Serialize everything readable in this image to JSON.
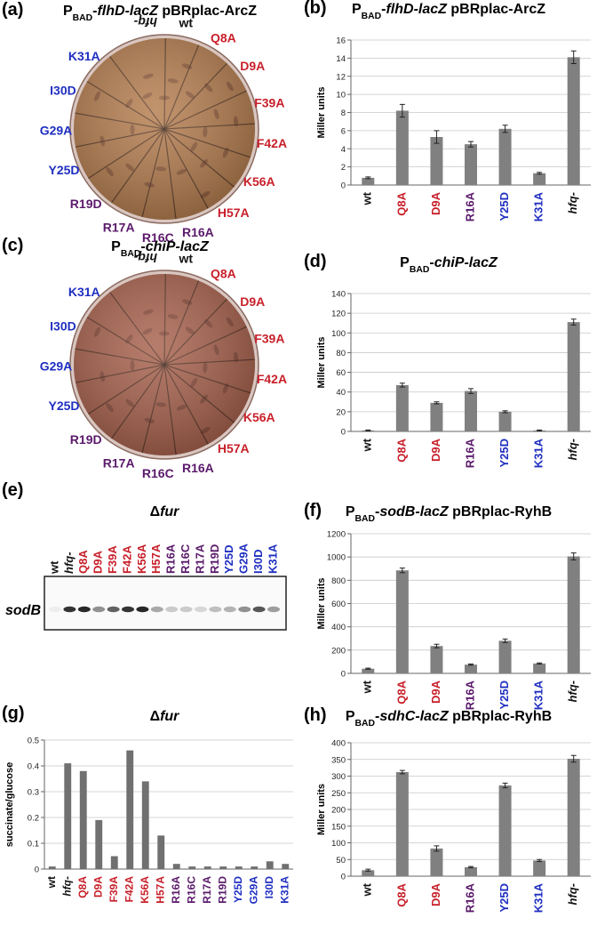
{
  "plates": [
    {
      "panel": "(a)",
      "title": [
        {
          "text": "P"
        },
        {
          "text": "BAD",
          "sub": true
        },
        {
          "text": "-"
        },
        {
          "text": "flhD-lacZ",
          "italic": true
        },
        {
          "text": " pBRplac-ArcZ"
        }
      ],
      "fill": "#b57d4e",
      "strains": [
        {
          "label": "hfq-",
          "color": "#111111"
        },
        {
          "label": "wt",
          "color": "#111111"
        },
        {
          "label": "Q8A",
          "color": "#c8202a"
        },
        {
          "label": "D9A",
          "color": "#c8202a"
        },
        {
          "label": "F39A",
          "color": "#c8202a"
        },
        {
          "label": "F42A",
          "color": "#c8202a"
        },
        {
          "label": "K56A",
          "color": "#c8202a"
        },
        {
          "label": "H57A",
          "color": "#c8202a"
        },
        {
          "label": "R16A",
          "color": "#5b1a6b"
        },
        {
          "label": "R16C",
          "color": "#5b1a6b"
        },
        {
          "label": "R17A",
          "color": "#5b1a6b"
        },
        {
          "label": "R19D",
          "color": "#5b1a6b"
        },
        {
          "label": "Y25D",
          "color": "#1f2fc0"
        },
        {
          "label": "G29A",
          "color": "#1f2fc0"
        },
        {
          "label": "I30D",
          "color": "#1f2fc0"
        },
        {
          "label": "K31A",
          "color": "#1f2fc0"
        }
      ]
    },
    {
      "panel": "(c)",
      "title": [
        {
          "text": "P"
        },
        {
          "text": "BAD",
          "sub": true
        },
        {
          "text": "-"
        },
        {
          "text": "chiP-lacZ",
          "italic": true
        }
      ],
      "fill": "#a8614c",
      "strains": [
        {
          "label": "hfq-",
          "color": "#111111"
        },
        {
          "label": "wt",
          "color": "#111111"
        },
        {
          "label": "Q8A",
          "color": "#c8202a"
        },
        {
          "label": "D9A",
          "color": "#c8202a"
        },
        {
          "label": "F39A",
          "color": "#c8202a"
        },
        {
          "label": "F42A",
          "color": "#c8202a"
        },
        {
          "label": "K56A",
          "color": "#c8202a"
        },
        {
          "label": "H57A",
          "color": "#c8202a"
        },
        {
          "label": "R16A",
          "color": "#5b1a6b"
        },
        {
          "label": "R16C",
          "color": "#5b1a6b"
        },
        {
          "label": "R17A",
          "color": "#5b1a6b"
        },
        {
          "label": "R19D",
          "color": "#5b1a6b"
        },
        {
          "label": "Y25D",
          "color": "#1f2fc0"
        },
        {
          "label": "G29A",
          "color": "#1f2fc0"
        },
        {
          "label": "I30D",
          "color": "#1f2fc0"
        },
        {
          "label": "K31A",
          "color": "#1f2fc0"
        }
      ]
    }
  ],
  "blot": {
    "panel": "(e)",
    "title": [
      {
        "text": "Δ"
      },
      {
        "text": "fur",
        "italic": true
      }
    ],
    "band_label": "sodB",
    "lanes": [
      {
        "label": "wt",
        "color": "#111111"
      },
      {
        "label": "hfq-",
        "color": "#111111"
      },
      {
        "label": "Q8A",
        "color": "#c8202a"
      },
      {
        "label": "D9A",
        "color": "#c8202a"
      },
      {
        "label": "F39A",
        "color": "#c8202a"
      },
      {
        "label": "F42A",
        "color": "#c8202a"
      },
      {
        "label": "K56A",
        "color": "#c8202a"
      },
      {
        "label": "H57A",
        "color": "#c8202a"
      },
      {
        "label": "R16A",
        "color": "#5b1a6b"
      },
      {
        "label": "R16C",
        "color": "#5b1a6b"
      },
      {
        "label": "R17A",
        "color": "#5b1a6b"
      },
      {
        "label": "R19D",
        "color": "#5b1a6b"
      },
      {
        "label": "Y25D",
        "color": "#1f2fc0"
      },
      {
        "label": "G29A",
        "color": "#1f2fc0"
      },
      {
        "label": "I30D",
        "color": "#1f2fc0"
      },
      {
        "label": "K31A",
        "color": "#1f2fc0"
      }
    ]
  },
  "chart_data": [
    {
      "type": "bar",
      "panel": "(b)",
      "title": [
        {
          "text": "P"
        },
        {
          "text": "BAD",
          "sub": true
        },
        {
          "text": "-"
        },
        {
          "text": "flhD-lacZ",
          "italic": true
        },
        {
          "text": " pBRplac-ArcZ"
        }
      ],
      "y_label": "Miller units",
      "categories": [
        "wt",
        "Q8A",
        "D9A",
        "R16A",
        "Y25D",
        "K31A",
        "hfq-"
      ],
      "label_colors": [
        "#111111",
        "#c8202a",
        "#c8202a",
        "#5b1a6b",
        "#1f2fc0",
        "#1f2fc0",
        "#111111"
      ],
      "values": [
        0.8,
        8.2,
        5.3,
        4.5,
        6.2,
        1.3,
        14.1
      ],
      "errors": [
        0.1,
        0.7,
        0.7,
        0.3,
        0.4,
        0.1,
        0.7
      ],
      "color": "#808080",
      "ylim": [
        0,
        16
      ],
      "yticks": [
        0,
        2,
        4,
        6,
        8,
        10,
        12,
        14,
        16
      ],
      "grid": true
    },
    {
      "type": "bar",
      "panel": "(d)",
      "title": [
        {
          "text": "P"
        },
        {
          "text": "BAD",
          "sub": true
        },
        {
          "text": "-"
        },
        {
          "text": "chiP-lacZ",
          "italic": true
        }
      ],
      "y_label": "Miller units",
      "categories": [
        "wt",
        "Q8A",
        "D9A",
        "R16A",
        "Y25D",
        "K31A",
        "hfq-"
      ],
      "label_colors": [
        "#111111",
        "#c8202a",
        "#c8202a",
        "#5b1a6b",
        "#1f2fc0",
        "#1f2fc0",
        "#111111"
      ],
      "values": [
        1,
        47,
        29,
        41,
        20,
        1,
        111
      ],
      "errors": [
        0.5,
        2,
        1,
        2.5,
        1,
        0.5,
        3
      ],
      "color": "#808080",
      "ylim": [
        0,
        140
      ],
      "yticks": [
        0,
        20,
        40,
        60,
        80,
        100,
        120,
        140
      ],
      "grid": true
    },
    {
      "type": "bar",
      "panel": "(f)",
      "title": [
        {
          "text": "P"
        },
        {
          "text": "BAD",
          "sub": true
        },
        {
          "text": "-"
        },
        {
          "text": "sodB-lacZ",
          "italic": true
        },
        {
          "text": " pBRplac-RyhB"
        }
      ],
      "y_label": "Miller units",
      "categories": [
        "wt",
        "Q8A",
        "D9A",
        "R16A",
        "Y25D",
        "K31A",
        "hfq-"
      ],
      "label_colors": [
        "#111111",
        "#c8202a",
        "#c8202a",
        "#5b1a6b",
        "#1f2fc0",
        "#1f2fc0",
        "#111111"
      ],
      "values": [
        40,
        885,
        235,
        75,
        280,
        85,
        1005
      ],
      "errors": [
        5,
        20,
        15,
        5,
        15,
        5,
        30
      ],
      "color": "#808080",
      "ylim": [
        0,
        1200
      ],
      "yticks": [
        0,
        200,
        400,
        600,
        800,
        1000,
        1200
      ],
      "grid": true
    },
    {
      "type": "bar",
      "panel": "(g)",
      "title": [
        {
          "text": "Δ"
        },
        {
          "text": "fur",
          "italic": true
        }
      ],
      "y_label": "succinate/glucose",
      "categories": [
        "wt",
        "hfq-",
        "Q8A",
        "D9A",
        "F39A",
        "F42A",
        "K56A",
        "H57A",
        "R16A",
        "R16C",
        "R17A",
        "R19D",
        "Y25D",
        "G29A",
        "I30D",
        "K31A"
      ],
      "label_colors": [
        "#111111",
        "#111111",
        "#c8202a",
        "#c8202a",
        "#c8202a",
        "#c8202a",
        "#c8202a",
        "#c8202a",
        "#5b1a6b",
        "#5b1a6b",
        "#5b1a6b",
        "#5b1a6b",
        "#1f2fc0",
        "#1f2fc0",
        "#1f2fc0",
        "#1f2fc0"
      ],
      "values": [
        0.01,
        0.41,
        0.38,
        0.19,
        0.05,
        0.46,
        0.34,
        0.13,
        0.02,
        0.01,
        0.01,
        0.01,
        0.01,
        0.01,
        0.03,
        0.02
      ],
      "color": "#707070",
      "ylim": [
        0,
        0.5
      ],
      "yticks": [
        0,
        0.1,
        0.2,
        0.3,
        0.4,
        0.5
      ],
      "grid": true
    },
    {
      "type": "bar",
      "panel": "(h)",
      "title": [
        {
          "text": "P"
        },
        {
          "text": "BAD",
          "sub": true
        },
        {
          "text": "-"
        },
        {
          "text": "sdhC-lacZ",
          "italic": true
        },
        {
          "text": " pBRplac-RyhB"
        }
      ],
      "y_label": "Miller units",
      "categories": [
        "wt",
        "Q8A",
        "D9A",
        "R16A",
        "Y25D",
        "K31A",
        "hfq-"
      ],
      "label_colors": [
        "#111111",
        "#c8202a",
        "#c8202a",
        "#5b1a6b",
        "#1f2fc0",
        "#1f2fc0",
        "#111111"
      ],
      "values": [
        18,
        312,
        83,
        27,
        272,
        47,
        352
      ],
      "errors": [
        3,
        5,
        8,
        2,
        7,
        3,
        10
      ],
      "color": "#808080",
      "ylim": [
        0,
        400
      ],
      "yticks": [
        0,
        50,
        100,
        150,
        200,
        250,
        300,
        350,
        400
      ],
      "grid": true
    }
  ]
}
